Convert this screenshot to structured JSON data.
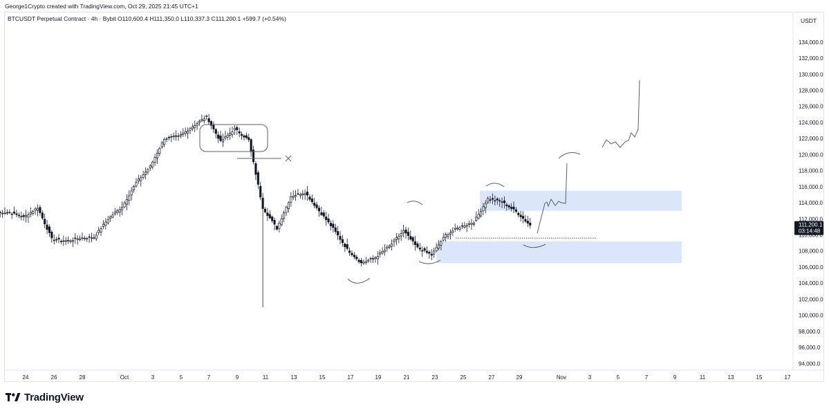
{
  "header": {
    "credit": "George1Crypto created with TradingView.com, Oct 29, 2025 21:45 UTC+1",
    "title": "BTCUSDT Perpetual Contract · 4h · Bybit  O110,600.4  H111,350.0  L110,337.3  C111,200.1  +599.7 (+0.54%)"
  },
  "footer": {
    "brand": "TradingView",
    "logo_icon": "tradingview-logo-icon"
  },
  "colors": {
    "up": "#131722",
    "down": "#131722",
    "zone": "#dbe6fb",
    "axis_text": "#131722",
    "price_badge": "#131722"
  },
  "chart_data": {
    "type": "candlestick",
    "symbol": "BTCUSDT Perpetual Contract",
    "interval": "4h",
    "exchange": "Bybit",
    "unit": "USDT",
    "ylim": [
      93000,
      137000
    ],
    "y_ticks": [
      "134,000.0",
      "132,000.0",
      "130,000.0",
      "128,000.0",
      "126,000.0",
      "124,000.0",
      "122,000.0",
      "120,000.0",
      "118,000.0",
      "116,000.0",
      "114,000.0",
      "112,000.0",
      "110,000.0",
      "108,000.0",
      "106,000.0",
      "104,000.0",
      "102,000.0",
      "100,000.0",
      "98,000.0",
      "96,000.0",
      "94,000.0"
    ],
    "x_ticks": [
      "24",
      "26",
      "28",
      "Oct",
      "3",
      "5",
      "7",
      "9",
      "11",
      "13",
      "15",
      "17",
      "19",
      "21",
      "23",
      "25",
      "27",
      "29",
      "Nov",
      "3",
      "5",
      "7",
      "9",
      "11",
      "13",
      "15",
      "17"
    ],
    "last_price": {
      "label": "111,200.1",
      "countdown": "03:14:48",
      "value": 111200.1
    },
    "daily_closes_approx": [
      {
        "date": "Sep 22",
        "close": 112800
      },
      {
        "date": "Sep 23",
        "close": 112200
      },
      {
        "date": "Sep 24",
        "close": 113400
      },
      {
        "date": "Sep 25",
        "close": 109500
      },
      {
        "date": "Sep 26",
        "close": 109200
      },
      {
        "date": "Sep 27",
        "close": 109600
      },
      {
        "date": "Sep 28",
        "close": 109700
      },
      {
        "date": "Sep 29",
        "close": 112000
      },
      {
        "date": "Sep 30",
        "close": 113500
      },
      {
        "date": "Oct 1",
        "close": 116500
      },
      {
        "date": "Oct 2",
        "close": 118500
      },
      {
        "date": "Oct 3",
        "close": 122000
      },
      {
        "date": "Oct 4",
        "close": 122200
      },
      {
        "date": "Oct 5",
        "close": 123500
      },
      {
        "date": "Oct 6",
        "close": 124700
      },
      {
        "date": "Oct 7",
        "close": 121600
      },
      {
        "date": "Oct 8",
        "close": 123200
      },
      {
        "date": "Oct 9",
        "close": 121800
      },
      {
        "date": "Oct 10",
        "close": 113400
      },
      {
        "date": "Oct 11",
        "close": 110800
      },
      {
        "date": "Oct 12",
        "close": 114800
      },
      {
        "date": "Oct 13",
        "close": 115300
      },
      {
        "date": "Oct 14",
        "close": 113000
      },
      {
        "date": "Oct 15",
        "close": 110800
      },
      {
        "date": "Oct 16",
        "close": 108200
      },
      {
        "date": "Oct 17",
        "close": 106500
      },
      {
        "date": "Oct 18",
        "close": 107200
      },
      {
        "date": "Oct 19",
        "close": 108600
      },
      {
        "date": "Oct 20",
        "close": 110500
      },
      {
        "date": "Oct 21",
        "close": 108400
      },
      {
        "date": "Oct 22",
        "close": 107500
      },
      {
        "date": "Oct 23",
        "close": 110000
      },
      {
        "date": "Oct 24",
        "close": 111000
      },
      {
        "date": "Oct 25",
        "close": 111600
      },
      {
        "date": "Oct 26",
        "close": 114500
      },
      {
        "date": "Oct 27",
        "close": 114100
      },
      {
        "date": "Oct 28",
        "close": 112900
      },
      {
        "date": "Oct 29",
        "close": 111200
      }
    ],
    "annotations": {
      "supply_zone": [
        113000,
        115500
      ],
      "demand_zone": [
        106500,
        109200
      ],
      "dotted_level": 109600,
      "consolidation_box": [
        120500,
        124000
      ]
    }
  }
}
